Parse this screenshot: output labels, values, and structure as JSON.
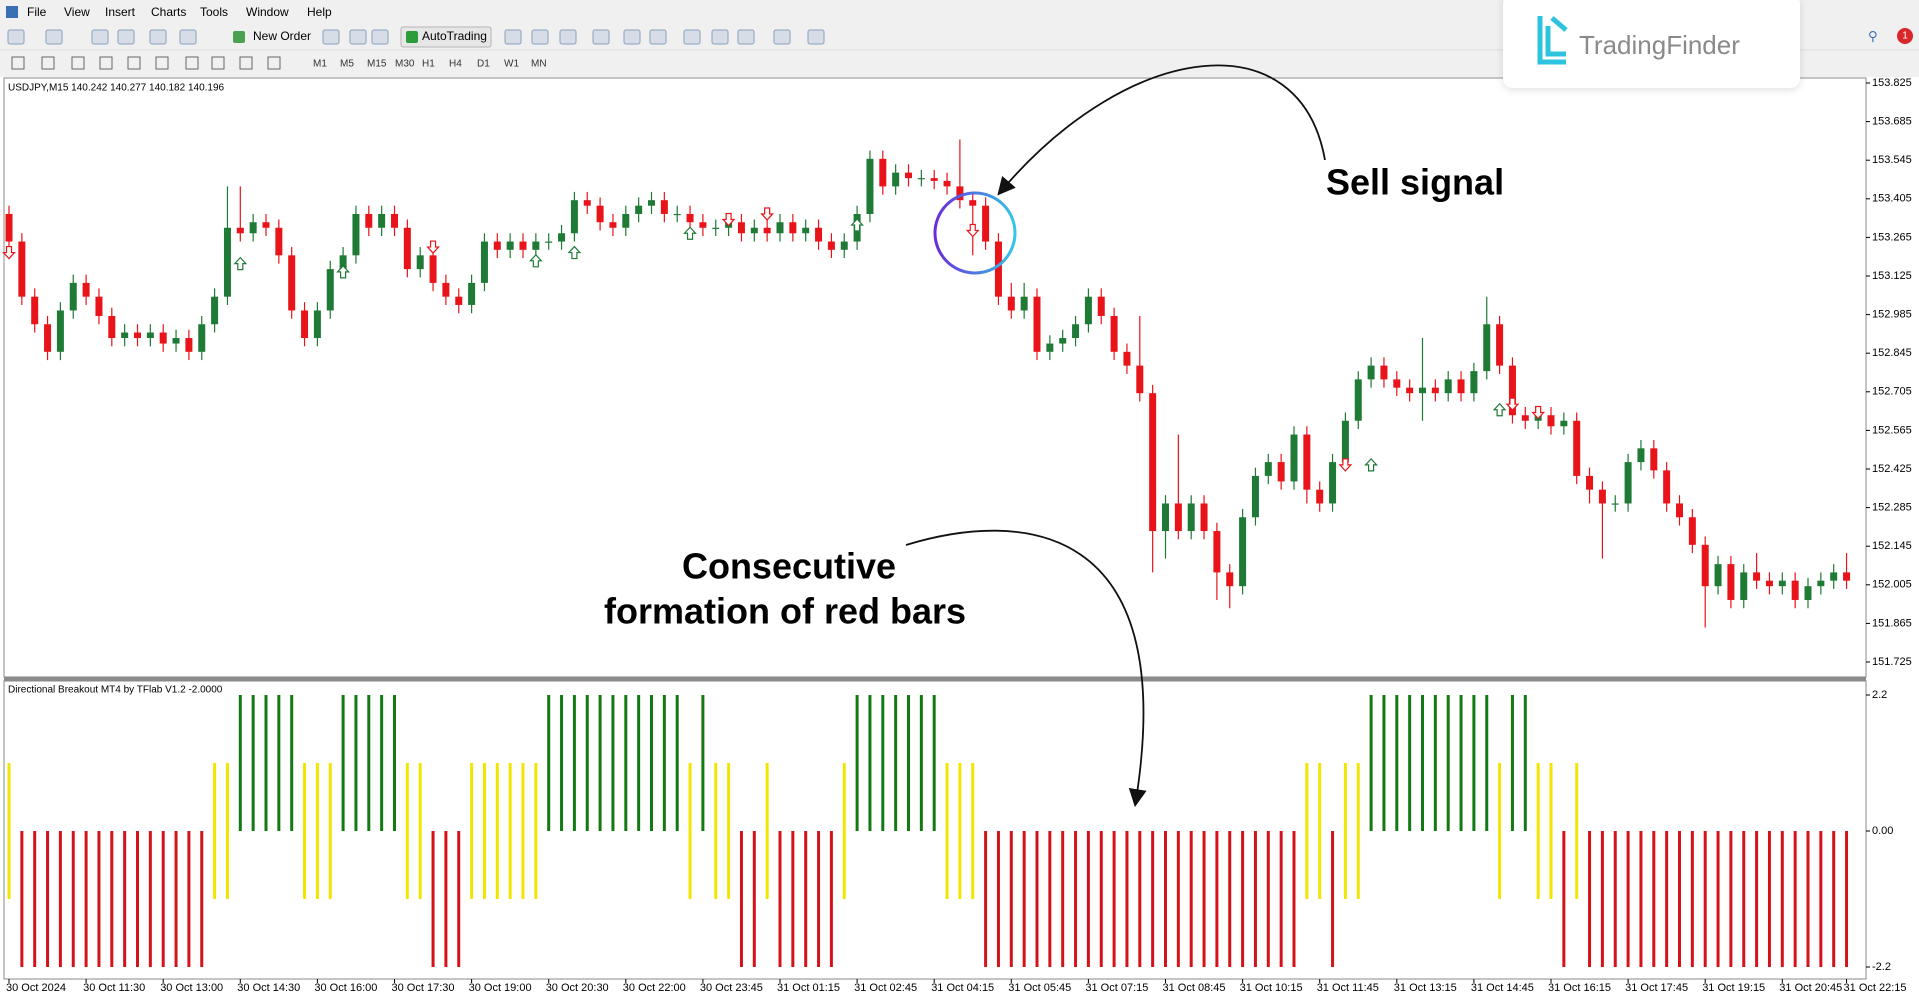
{
  "menu": [
    "File",
    "View",
    "Insert",
    "Charts",
    "Tools",
    "Window",
    "Help"
  ],
  "toolbar": {
    "new_order": "New Order",
    "autotrading": "AutoTrading",
    "timeframes": [
      "M1",
      "M5",
      "M15",
      "M30",
      "H1",
      "H4",
      "D1",
      "W1",
      "MN"
    ]
  },
  "logo": "TradingFinder",
  "notification_count": 1,
  "annotations": {
    "sell_signal": "Sell signal",
    "red_bars": [
      "Consecutive",
      "formation of red bars"
    ]
  },
  "chart_data": [
    {
      "type": "candlestick",
      "title": "USDJPY,M15  140.242 140.277 140.182 140.196",
      "colors": {
        "up": "#1f7a36",
        "down": "#e8141a"
      },
      "open": [
        153.35,
        153.25,
        153.05,
        152.95,
        152.85,
        153.0,
        153.1,
        153.05,
        152.98,
        152.9,
        152.92,
        152.9,
        152.92,
        152.88,
        152.9,
        152.85,
        152.95,
        153.05,
        153.3,
        153.28,
        153.32,
        153.3,
        153.2,
        153.0,
        152.9,
        153.0,
        153.15,
        153.2,
        153.35,
        153.3,
        153.35,
        153.3,
        153.15,
        153.2,
        153.1,
        153.05,
        153.02,
        153.1,
        153.25,
        153.22,
        153.25,
        153.22,
        153.25,
        153.25,
        153.28,
        153.4,
        153.38,
        153.32,
        153.3,
        153.35,
        153.38,
        153.4,
        153.35,
        153.35,
        153.32,
        153.3,
        153.3,
        153.32,
        153.28,
        153.3,
        153.28,
        153.32,
        153.28,
        153.3,
        153.25,
        153.22,
        153.25,
        153.35,
        153.55,
        153.45,
        153.5,
        153.48,
        153.48,
        153.47,
        153.45,
        153.4,
        153.38,
        153.25,
        153.05,
        153.0,
        153.05,
        152.85,
        152.88,
        152.9,
        152.95,
        153.05,
        152.98,
        152.85,
        152.8,
        152.7,
        152.2,
        152.3,
        152.2,
        152.3,
        152.2,
        152.05,
        152.0,
        152.25,
        152.4,
        152.45,
        152.38,
        152.55,
        152.35,
        152.3,
        152.45,
        152.6,
        152.75,
        152.8,
        152.75,
        152.72,
        152.7,
        152.72,
        152.7,
        152.75,
        152.7,
        152.78,
        152.95,
        152.8,
        152.62,
        152.6,
        152.62,
        152.58,
        152.6,
        152.4,
        152.35,
        152.3,
        152.3,
        152.45,
        152.5,
        152.42,
        152.3,
        152.25,
        152.15,
        152.0,
        152.08,
        151.95,
        152.05,
        152.02,
        152.0,
        152.02,
        151.95,
        152.0,
        152.02,
        152.05
      ],
      "high": [
        153.38,
        153.28,
        153.08,
        152.98,
        153.03,
        153.13,
        153.13,
        153.08,
        153.01,
        152.95,
        152.95,
        152.95,
        152.95,
        152.93,
        152.93,
        152.98,
        153.08,
        153.45,
        153.45,
        153.35,
        153.35,
        153.33,
        153.23,
        153.03,
        153.03,
        153.18,
        153.23,
        153.38,
        153.38,
        153.38,
        153.38,
        153.33,
        153.23,
        153.23,
        153.13,
        153.08,
        153.13,
        153.28,
        153.28,
        153.28,
        153.28,
        153.28,
        153.28,
        153.31,
        153.43,
        153.43,
        153.41,
        153.35,
        153.38,
        153.41,
        153.43,
        153.43,
        153.38,
        153.38,
        153.35,
        153.33,
        153.35,
        153.35,
        153.33,
        153.33,
        153.35,
        153.35,
        153.33,
        153.33,
        153.28,
        153.28,
        153.38,
        153.58,
        153.58,
        153.53,
        153.53,
        153.51,
        153.51,
        153.5,
        153.62,
        153.43,
        153.41,
        153.28,
        153.1,
        153.1,
        153.08,
        152.91,
        152.93,
        152.98,
        153.08,
        153.08,
        153.01,
        152.88,
        152.98,
        152.73,
        152.33,
        152.55,
        152.33,
        152.33,
        152.23,
        152.08,
        152.28,
        152.43,
        152.48,
        152.48,
        152.58,
        152.58,
        152.38,
        152.48,
        152.63,
        152.78,
        152.83,
        152.83,
        152.78,
        152.75,
        152.9,
        152.75,
        152.78,
        152.78,
        152.81,
        153.05,
        152.98,
        152.83,
        152.65,
        152.65,
        152.65,
        152.63,
        152.63,
        152.43,
        152.38,
        152.33,
        152.48,
        152.53,
        152.53,
        152.45,
        152.33,
        152.28,
        152.18,
        152.11,
        152.11,
        152.08,
        152.12,
        152.05,
        152.05,
        152.05,
        152.03,
        152.05,
        152.08,
        152.12
      ],
      "low": [
        153.22,
        153.02,
        152.92,
        152.82,
        152.82,
        152.97,
        153.02,
        152.95,
        152.87,
        152.87,
        152.87,
        152.87,
        152.85,
        152.85,
        152.82,
        152.82,
        152.92,
        153.02,
        153.25,
        153.25,
        153.27,
        153.17,
        152.97,
        152.87,
        152.87,
        152.97,
        153.12,
        153.17,
        153.27,
        153.27,
        153.27,
        153.12,
        153.12,
        153.07,
        153.02,
        152.99,
        152.99,
        153.07,
        153.19,
        153.19,
        153.19,
        153.19,
        153.22,
        153.22,
        153.25,
        153.35,
        153.29,
        153.27,
        153.27,
        153.32,
        153.35,
        153.32,
        153.32,
        153.29,
        153.27,
        153.27,
        153.27,
        153.25,
        153.25,
        153.25,
        153.25,
        153.25,
        153.25,
        153.22,
        153.19,
        153.19,
        153.22,
        153.32,
        153.42,
        153.42,
        153.45,
        153.45,
        153.44,
        153.42,
        153.37,
        153.2,
        153.22,
        153.02,
        152.97,
        152.97,
        152.82,
        152.82,
        152.85,
        152.87,
        152.92,
        152.95,
        152.82,
        152.77,
        152.67,
        152.05,
        152.1,
        152.17,
        152.17,
        152.17,
        151.95,
        151.92,
        151.97,
        152.22,
        152.37,
        152.35,
        152.35,
        152.3,
        152.27,
        152.27,
        152.42,
        152.57,
        152.72,
        152.72,
        152.69,
        152.67,
        152.6,
        152.67,
        152.67,
        152.67,
        152.67,
        152.75,
        152.77,
        152.59,
        152.57,
        152.57,
        152.55,
        152.55,
        152.37,
        152.3,
        152.1,
        152.27,
        152.27,
        152.42,
        152.39,
        152.27,
        152.22,
        152.12,
        151.85,
        151.97,
        151.92,
        151.92,
        151.99,
        151.97,
        151.97,
        151.92,
        151.92,
        151.97,
        151.99,
        151.99
      ],
      "close": [
        153.25,
        153.05,
        152.95,
        152.85,
        153.0,
        153.1,
        153.05,
        152.98,
        152.9,
        152.92,
        152.9,
        152.92,
        152.88,
        152.9,
        152.85,
        152.95,
        153.05,
        153.3,
        153.28,
        153.32,
        153.3,
        153.2,
        153.0,
        152.9,
        153.0,
        153.15,
        153.2,
        153.35,
        153.3,
        153.35,
        153.3,
        153.15,
        153.2,
        153.1,
        153.05,
        153.02,
        153.1,
        153.25,
        153.22,
        153.25,
        153.22,
        153.25,
        153.25,
        153.28,
        153.4,
        153.38,
        153.32,
        153.3,
        153.35,
        153.38,
        153.4,
        153.35,
        153.35,
        153.32,
        153.3,
        153.3,
        153.32,
        153.28,
        153.3,
        153.28,
        153.32,
        153.28,
        153.3,
        153.25,
        153.22,
        153.25,
        153.35,
        153.55,
        153.45,
        153.5,
        153.48,
        153.48,
        153.47,
        153.45,
        153.4,
        153.38,
        153.25,
        153.05,
        153.0,
        153.05,
        152.85,
        152.88,
        152.9,
        152.95,
        153.05,
        152.98,
        152.85,
        152.8,
        152.7,
        152.2,
        152.3,
        152.2,
        152.3,
        152.2,
        152.05,
        152.0,
        152.25,
        152.4,
        152.45,
        152.38,
        152.55,
        152.35,
        152.3,
        152.45,
        152.6,
        152.75,
        152.8,
        152.75,
        152.72,
        152.7,
        152.72,
        152.7,
        152.75,
        152.7,
        152.78,
        152.95,
        152.8,
        152.62,
        152.6,
        152.62,
        152.58,
        152.6,
        152.4,
        152.35,
        152.3,
        152.3,
        152.45,
        152.5,
        152.42,
        152.3,
        152.25,
        152.15,
        152.0,
        152.08,
        151.95,
        152.05,
        152.02,
        152.0,
        152.02,
        151.95,
        152.0,
        152.02,
        152.05,
        152.02
      ],
      "buy_signals": {
        "color": "#1f7a36",
        "x": [
          18,
          26,
          41,
          44,
          53,
          66,
          106,
          116
        ],
        "y": [
          153.17,
          153.14,
          153.18,
          153.21,
          153.28,
          153.31,
          152.44,
          152.64
        ]
      },
      "sell_signals": {
        "color": "#e8141a",
        "x": [
          0,
          33,
          56,
          59,
          75,
          104,
          117,
          119
        ],
        "y": [
          153.21,
          153.23,
          153.33,
          153.35,
          153.29,
          152.44,
          152.66,
          152.63
        ]
      },
      "ylim": [
        151.725,
        153.825
      ],
      "yticks": [
        153.825,
        153.685,
        153.545,
        153.405,
        153.265,
        153.125,
        152.985,
        152.845,
        152.705,
        152.565,
        152.425,
        152.285,
        152.145,
        152.005,
        151.865,
        151.725
      ],
      "xticks": [
        {
          "value": 0,
          "label": "30 Oct 2024"
        },
        {
          "value": 6,
          "label": "30 Oct 11:30"
        },
        {
          "value": 12,
          "label": "30 Oct 13:00"
        },
        {
          "value": 18,
          "label": "30 Oct 14:30"
        },
        {
          "value": 24,
          "label": "30 Oct 16:00"
        },
        {
          "value": 30,
          "label": "30 Oct 17:30"
        },
        {
          "value": 36,
          "label": "30 Oct 19:00"
        },
        {
          "value": 42,
          "label": "30 Oct 20:30"
        },
        {
          "value": 48,
          "label": "30 Oct 22:00"
        },
        {
          "value": 54,
          "label": "30 Oct 23:45"
        },
        {
          "value": 60,
          "label": "31 Oct 01:15"
        },
        {
          "value": 66,
          "label": "31 Oct 02:45"
        },
        {
          "value": 72,
          "label": "31 Oct 04:15"
        },
        {
          "value": 78,
          "label": "31 Oct 05:45"
        },
        {
          "value": 84,
          "label": "31 Oct 07:15"
        },
        {
          "value": 90,
          "label": "31 Oct 08:45"
        },
        {
          "value": 96,
          "label": "31 Oct 10:15"
        },
        {
          "value": 102,
          "label": "31 Oct 11:45"
        },
        {
          "value": 108,
          "label": "31 Oct 13:15"
        },
        {
          "value": 114,
          "label": "31 Oct 14:45"
        },
        {
          "value": 120,
          "label": "31 Oct 16:15"
        },
        {
          "value": 126,
          "label": "31 Oct 17:45"
        },
        {
          "value": 132,
          "label": "31 Oct 19:15"
        },
        {
          "value": 138,
          "label": "31 Oct 20:45"
        },
        {
          "value": 143,
          "label": "31 Oct 22:15"
        }
      ]
    },
    {
      "type": "bar",
      "title": "Directional Breakout MT4 by TFlab V1.2 -2.0000",
      "colors": {
        "up": "#137a13",
        "flat": "#f2e600",
        "down": "#d4121a"
      },
      "lows": [
        -1.1,
        -2.2,
        -2.2,
        -2.2,
        -2.2,
        -2.2,
        -2.2,
        -2.2,
        -2.2,
        -2.2,
        -2.2,
        -2.2,
        -2.2,
        -2.2,
        -2.2,
        -2.2,
        -1.1,
        -1.1,
        0,
        0,
        0,
        0,
        0,
        -1.1,
        -1.1,
        -1.1,
        0,
        0,
        0,
        0,
        0,
        -1.1,
        -1.1,
        -2.2,
        -2.2,
        -2.2,
        -1.1,
        -1.1,
        -1.1,
        -1.1,
        -1.1,
        -1.1,
        0,
        0,
        0,
        0,
        0,
        0,
        0,
        0,
        0,
        0,
        0,
        -1.1,
        0,
        -1.1,
        -1.1,
        -2.2,
        -2.2,
        -1.1,
        -2.2,
        -2.2,
        -2.2,
        -2.2,
        -2.2,
        -1.1,
        0,
        0,
        0,
        0,
        0,
        0,
        0,
        -1.1,
        -1.1,
        -1.1,
        -2.2,
        -2.2,
        -2.2,
        -2.2,
        -2.2,
        -2.2,
        -2.2,
        -2.2,
        -2.2,
        -2.2,
        -2.2,
        -2.2,
        -2.2,
        -2.2,
        -2.2,
        -2.2,
        -2.2,
        -2.2,
        -2.2,
        -2.2,
        -2.2,
        -2.2,
        -2.2,
        -2.2,
        -2.2,
        -1.1,
        -1.1,
        -2.2,
        -1.1,
        -1.1,
        0,
        0,
        0,
        0,
        0,
        0,
        0,
        0,
        0,
        0,
        -1.1,
        0,
        0,
        -1.1,
        -1.1,
        -2.2,
        -1.1,
        -2.2,
        -2.2,
        -2.2,
        -2.2,
        -2.2,
        -2.2,
        -2.2,
        -2.2,
        -2.2,
        -2.2,
        -2.2,
        -2.2,
        -2.2,
        -2.2,
        -2.2,
        -2.2,
        -2.2,
        -2.2,
        -2.2,
        -2.2,
        -2.2
      ],
      "highs": [
        1.1,
        0,
        0,
        0,
        0,
        0,
        0,
        0,
        0,
        0,
        0,
        0,
        0,
        0,
        0,
        0,
        1.1,
        1.1,
        2.2,
        2.2,
        2.2,
        2.2,
        2.2,
        1.1,
        1.1,
        1.1,
        2.2,
        2.2,
        2.2,
        2.2,
        2.2,
        1.1,
        1.1,
        0,
        0,
        0,
        1.1,
        1.1,
        1.1,
        1.1,
        1.1,
        1.1,
        2.2,
        2.2,
        2.2,
        2.2,
        2.2,
        2.2,
        2.2,
        2.2,
        2.2,
        2.2,
        2.2,
        1.1,
        2.2,
        1.1,
        1.1,
        0,
        0,
        1.1,
        0,
        0,
        0,
        0,
        0,
        1.1,
        2.2,
        2.2,
        2.2,
        2.2,
        2.2,
        2.2,
        2.2,
        1.1,
        1.1,
        1.1,
        0,
        0,
        0,
        0,
        0,
        0,
        0,
        0,
        0,
        0,
        0,
        0,
        0,
        0,
        0,
        0,
        0,
        0,
        0,
        0,
        0,
        0,
        0,
        0,
        0,
        1.1,
        1.1,
        0,
        1.1,
        1.1,
        2.2,
        2.2,
        2.2,
        2.2,
        2.2,
        2.2,
        2.2,
        2.2,
        2.2,
        2.2,
        1.1,
        2.2,
        2.2,
        1.1,
        1.1,
        0,
        1.1,
        0,
        0,
        0,
        0,
        0,
        0,
        0,
        0,
        0,
        0,
        0,
        0,
        0,
        0,
        0,
        0,
        0,
        0,
        0,
        0,
        0
      ],
      "ylim": [
        -2.2,
        2.2
      ],
      "yticks": [
        2.2,
        {
          "value": 0,
          "label": "0.00"
        },
        -2.2
      ]
    }
  ]
}
